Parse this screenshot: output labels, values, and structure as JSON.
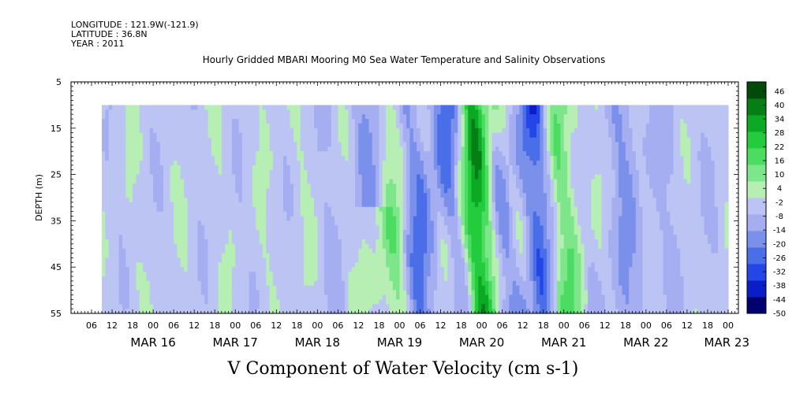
{
  "header": {
    "longitude": "LONGITUDE : 121.9W(-121.9)",
    "latitude": "LATITUDE : 36.8N",
    "year": "YEAR : 2011"
  },
  "chart_data": {
    "type": "heatmap",
    "title": "Hourly Gridded MBARI Mooring M0 Sea Water Temperature and Salinity Observations",
    "xlabel": "V Component of Water Velocity (cm s-1)",
    "ylabel": "DEPTH (m)",
    "y_axis": {
      "range": [
        5,
        55
      ],
      "inverted": true,
      "ticks": [
        "5",
        "15",
        "25",
        "35",
        "45",
        "55"
      ],
      "data_depth_range": [
        10,
        55
      ]
    },
    "x_axis": {
      "hour_ticks": [
        "06",
        "12",
        "18",
        "00",
        "06",
        "12",
        "18",
        "00",
        "06",
        "12",
        "18",
        "00",
        "06",
        "12",
        "18",
        "00",
        "06",
        "12",
        "18",
        "00",
        "06",
        "12",
        "18",
        "00",
        "06",
        "12",
        "18",
        "00",
        "06",
        "12",
        "18",
        "00"
      ],
      "day_labels": [
        "MAR 16",
        "MAR 17",
        "MAR 18",
        "MAR 19",
        "MAR 20",
        "MAR 21",
        "MAR 22",
        "MAR 23"
      ],
      "start": "2011-03-15 00:00",
      "end": "2011-03-23 03:00",
      "data_start": "2011-03-15 09:00",
      "data_end": "2011-03-23 00:00"
    },
    "colorbar": {
      "ticks": [
        "46",
        "40",
        "34",
        "28",
        "22",
        "16",
        "10",
        "4",
        "-2",
        "-8",
        "-14",
        "-20",
        "-26",
        "-32",
        "-38",
        "-44",
        "-50"
      ],
      "min": -50,
      "max": 50,
      "colors": [
        "#00006e",
        "#0a1ec8",
        "#2446e6",
        "#4a6ee8",
        "#7a90ea",
        "#a4aef0",
        "#bcc4f4",
        "#b6eeb4",
        "#7ee68a",
        "#4cdc62",
        "#22cc3c",
        "#0caa24",
        "#067e16",
        "#024a0a"
      ]
    }
  }
}
